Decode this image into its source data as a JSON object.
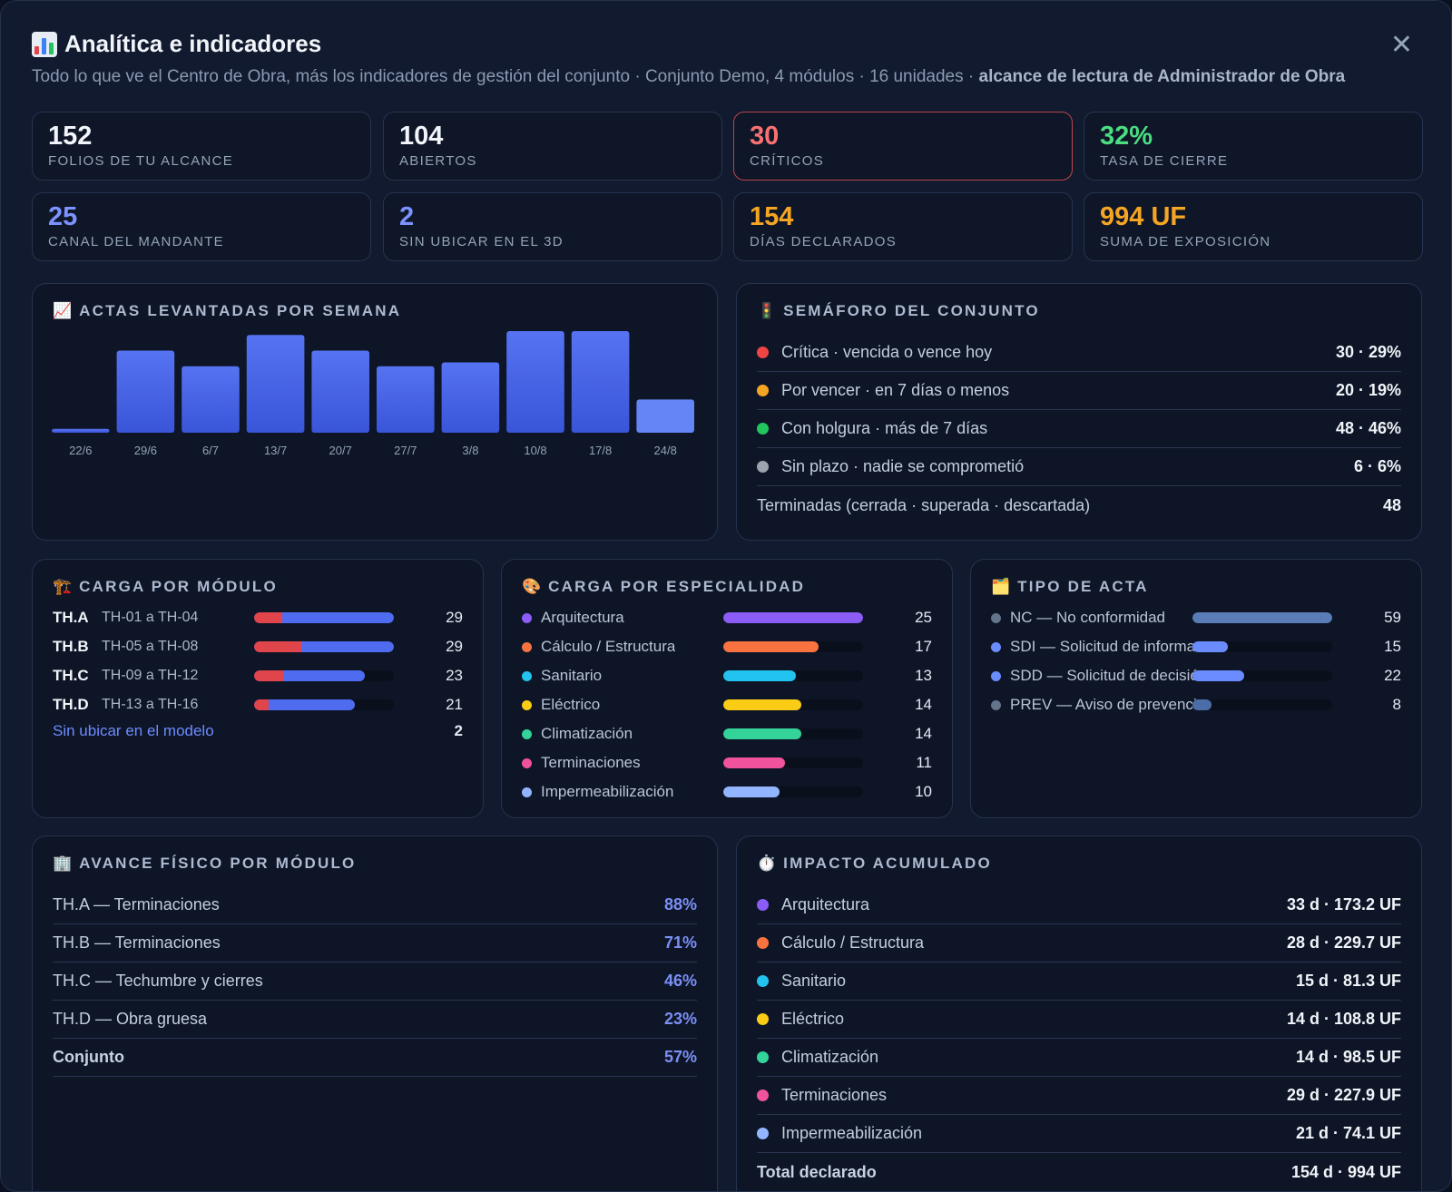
{
  "header": {
    "title": "Analítica e indicadores",
    "subtitle": "Todo lo que ve el Centro de Obra, más los indicadores de gestión del conjunto · Conjunto Demo, 4 módulos · 16 unidades · ",
    "subtitle_bold": "alcance de lectura de Administrador de Obra",
    "close": "✕"
  },
  "stats": [
    {
      "value": "152",
      "label": "Folios de tu alcance",
      "color": "#f1f5f9"
    },
    {
      "value": "104",
      "label": "Abiertos",
      "color": "#f1f5f9"
    },
    {
      "value": "30",
      "label": "Críticos",
      "color": "#f87171"
    },
    {
      "value": "32%",
      "label": "Tasa de cierre",
      "color": "#4ade80"
    },
    {
      "value": "25",
      "label": "Canal del mandante",
      "color": "#7c93ff"
    },
    {
      "value": "2",
      "label": "Sin ubicar en el 3D",
      "color": "#7c93ff"
    },
    {
      "value": "154",
      "label": "Días declarados",
      "color": "#f5a524"
    },
    {
      "value": "994 UF",
      "label": "Suma de exposición",
      "color": "#f5a524"
    }
  ],
  "weekly": {
    "title": "Actas levantadas por semana",
    "icon": "📈"
  },
  "chart_data": {
    "type": "bar",
    "categories": [
      "22/6",
      "29/6",
      "6/7",
      "13/7",
      "20/7",
      "27/7",
      "3/8",
      "10/8",
      "17/8",
      "24/8"
    ],
    "values": [
      1,
      21,
      17,
      25,
      21,
      17,
      18,
      26,
      26,
      8.5
    ],
    "ylim": [
      0,
      26
    ],
    "grid": false,
    "bar_color": "#4f6cf0",
    "last_bar_color": "#6585f7"
  },
  "semaforo": {
    "title": "Semáforo del conjunto",
    "icon": "🚦",
    "rows": [
      {
        "label": "Crítica · vencida o vence hoy",
        "value": "30 · 29%",
        "color": "#ef4444"
      },
      {
        "label": "Por vencer · en 7 días o menos",
        "value": "20 · 19%",
        "color": "#f5a524"
      },
      {
        "label": "Con holgura · más de 7 días",
        "value": "48 · 46%",
        "color": "#22c55e"
      },
      {
        "label": "Sin plazo · nadie se comprometió",
        "value": "6 · 6%",
        "color": "#9ca3af"
      }
    ],
    "footer": {
      "label": "Terminadas (cerrada · superada · descartada)",
      "value": "48"
    }
  },
  "modulos": {
    "title": "Carga por módulo",
    "icon": "🏗️",
    "rows": [
      {
        "code": "TH.A",
        "range": "TH-01 a TH-04",
        "value": "29",
        "total_frac": 1.0,
        "crit_frac": 0.2
      },
      {
        "code": "TH.B",
        "range": "TH-05 a TH-08",
        "value": "29",
        "total_frac": 1.0,
        "crit_frac": 0.34
      },
      {
        "code": "TH.C",
        "range": "TH-09 a TH-12",
        "value": "23",
        "total_frac": 0.79,
        "crit_frac": 0.27
      },
      {
        "code": "TH.D",
        "range": "TH-13 a TH-16",
        "value": "21",
        "total_frac": 0.72,
        "crit_frac": 0.14
      }
    ],
    "unlocated": {
      "label": "Sin ubicar en el modelo",
      "value": "2"
    }
  },
  "especialidad": {
    "title": "Carga por especialidad",
    "icon": "🎨",
    "max": 25,
    "rows": [
      {
        "label": "Arquitectura",
        "value": "25",
        "n": 25,
        "color": "#8b5cf6"
      },
      {
        "label": "Cálculo / Estructura",
        "value": "17",
        "n": 17,
        "color": "#f97340"
      },
      {
        "label": "Sanitario",
        "value": "13",
        "n": 13,
        "color": "#22c3ee"
      },
      {
        "label": "Eléctrico",
        "value": "14",
        "n": 14,
        "color": "#facc15"
      },
      {
        "label": "Climatización",
        "value": "14",
        "n": 14,
        "color": "#34d399"
      },
      {
        "label": "Terminaciones",
        "value": "11",
        "n": 11,
        "color": "#f0529c"
      },
      {
        "label": "Impermeabilización",
        "value": "10",
        "n": 10,
        "color": "#93b4ff"
      }
    ]
  },
  "tipo": {
    "title": "Tipo de acta",
    "icon": "🗂️",
    "max": 59,
    "rows": [
      {
        "label": "NC — No conformidad",
        "value": "59",
        "n": 59,
        "color": "#5a7db8",
        "dot": "#64748b"
      },
      {
        "label": "SDI — Solicitud de información",
        "value": "15",
        "n": 15,
        "color": "#6b8cff",
        "dot": "#6b8cff"
      },
      {
        "label": "SDD — Solicitud de decisión",
        "value": "22",
        "n": 22,
        "color": "#6b8cff",
        "dot": "#6b8cff"
      },
      {
        "label": "PREV — Aviso de prevención",
        "value": "8",
        "n": 8,
        "color": "#4b6ea8",
        "dot": "#64748b"
      }
    ]
  },
  "avance": {
    "title": "Avance físico por módulo",
    "icon": "🏢",
    "rows": [
      {
        "label": "TH.A — Terminaciones",
        "value": "88%"
      },
      {
        "label": "TH.B — Terminaciones",
        "value": "71%"
      },
      {
        "label": "TH.C — Techumbre y cierres",
        "value": "46%"
      },
      {
        "label": "TH.D — Obra gruesa",
        "value": "23%"
      }
    ],
    "total": {
      "label": "Conjunto",
      "value": "57%"
    }
  },
  "impacto": {
    "title": "Impacto acumulado",
    "icon": "⏱️",
    "rows": [
      {
        "label": "Arquitectura",
        "value": "33 d · 173.2 UF",
        "color": "#8b5cf6"
      },
      {
        "label": "Cálculo / Estructura",
        "value": "28 d · 229.7 UF",
        "color": "#f97340"
      },
      {
        "label": "Sanitario",
        "value": "15 d · 81.3 UF",
        "color": "#22c3ee"
      },
      {
        "label": "Eléctrico",
        "value": "14 d · 108.8 UF",
        "color": "#facc15"
      },
      {
        "label": "Climatización",
        "value": "14 d · 98.5 UF",
        "color": "#34d399"
      },
      {
        "label": "Terminaciones",
        "value": "29 d · 227.9 UF",
        "color": "#f0529c"
      },
      {
        "label": "Impermeabilización",
        "value": "21 d · 74.1 UF",
        "color": "#93b4ff"
      }
    ],
    "total": {
      "label": "Total declarado",
      "value": "154 d · 994 UF"
    }
  }
}
